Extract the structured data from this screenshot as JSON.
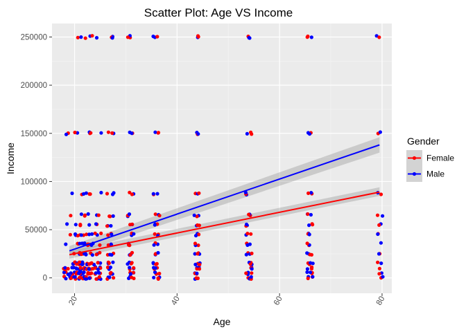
{
  "chart_data": {
    "type": "scatter",
    "title": "Scatter Plot: Age VS Income",
    "xlabel": "Age",
    "ylabel": "Income",
    "xlim": [
      15.6,
      81.9
    ],
    "ylim": [
      -16000,
      264000
    ],
    "x_ticks": [
      20,
      40,
      60,
      80
    ],
    "x_tick_labels": [
      "20",
      "40",
      "60",
      "80"
    ],
    "x_minor_ticks": [
      30,
      50,
      70
    ],
    "x_tick_rotation": -60,
    "y_ticks": [
      0,
      50000,
      100000,
      150000,
      200000,
      250000
    ],
    "y_tick_labels": [
      "0",
      "50000",
      "100000",
      "150000",
      "200000",
      "250000"
    ],
    "y_minor_ticks": [
      25000,
      75000,
      125000,
      175000,
      225000
    ],
    "grid": true,
    "panel_background": "#ebebeb",
    "legend": {
      "title": "Gender",
      "position": "right",
      "entries": [
        {
          "name": "Female",
          "color": "#ff0000"
        },
        {
          "name": "Male",
          "color": "#0000ff"
        }
      ]
    },
    "age_groups": [
      19,
      21,
      22,
      24,
      27,
      31,
      36,
      44,
      54,
      66,
      79.5
    ],
    "income_levels": [
      0,
      5000,
      10000,
      15000,
      25000,
      35000,
      45000,
      55000,
      65000,
      87500,
      150000,
      250000
    ],
    "series": [
      {
        "name": "Female",
        "color": "#ff0000",
        "trend": {
          "x": [
            19,
            79.5
          ],
          "y": [
            24000,
            89000
          ],
          "se_low": [
            20000,
            85000
          ],
          "se_high": [
            28000,
            94000
          ]
        }
      },
      {
        "name": "Male",
        "color": "#0000ff",
        "trend": {
          "x": [
            19,
            79.5
          ],
          "y": [
            28000,
            138000
          ],
          "se_low": [
            23000,
            130000
          ],
          "se_high": [
            33000,
            146000
          ]
        }
      }
    ]
  }
}
